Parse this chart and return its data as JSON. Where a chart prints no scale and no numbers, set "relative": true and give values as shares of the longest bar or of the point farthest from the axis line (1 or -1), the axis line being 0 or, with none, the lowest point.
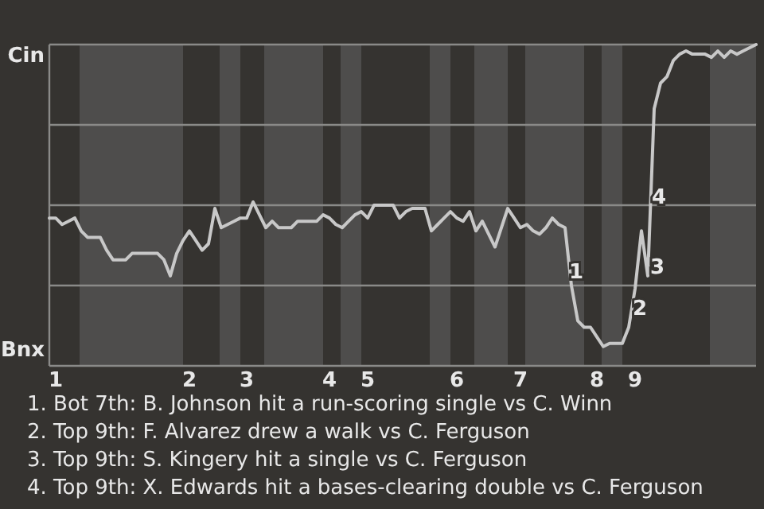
{
  "chart_data": {
    "type": "line",
    "relative": true,
    "categories": [
      null,
      "1",
      null,
      null,
      null,
      null,
      null,
      null,
      null,
      null,
      null,
      null,
      null,
      null,
      null,
      null,
      null,
      null,
      null,
      null,
      null,
      null,
      "2",
      null,
      null,
      null,
      null,
      null,
      null,
      null,
      null,
      "3",
      null,
      null,
      null,
      null,
      null,
      null,
      null,
      null,
      null,
      null,
      null,
      null,
      "4",
      null,
      null,
      null,
      null,
      null,
      "5",
      null,
      null,
      null,
      null,
      null,
      null,
      null,
      null,
      null,
      null,
      null,
      null,
      null,
      "6",
      null,
      null,
      null,
      null,
      null,
      null,
      null,
      null,
      null,
      "7",
      null,
      null,
      null,
      null,
      null,
      null,
      null,
      null,
      null,
      null,
      null,
      "8",
      null,
      null,
      null,
      null,
      null,
      "9",
      null,
      null,
      null,
      null,
      null,
      null,
      null,
      null,
      null,
      null,
      null,
      null,
      null,
      null,
      null,
      null,
      null,
      null,
      null
    ],
    "grid": "y",
    "marker": "none",
    "line_style": "solid",
    "series": [
      {
        "color": "#c8c8c8",
        "values": [
          0.46,
          0.46,
          0.44,
          0.45,
          0.46,
          0.42,
          0.4,
          0.4,
          0.4,
          0.36,
          0.33,
          0.33,
          0.33,
          0.35,
          0.35,
          0.35,
          0.35,
          0.35,
          0.33,
          0.28,
          0.35,
          0.39,
          0.42,
          0.39,
          0.36,
          0.38,
          0.49,
          0.43,
          0.44,
          0.45,
          0.46,
          0.46,
          0.51,
          0.47,
          0.43,
          0.45,
          0.43,
          0.43,
          0.43,
          0.45,
          0.45,
          0.45,
          0.45,
          0.47,
          0.46,
          0.44,
          0.43,
          0.45,
          0.47,
          0.48,
          0.46,
          0.5,
          0.5,
          0.5,
          0.5,
          0.46,
          0.48,
          0.49,
          0.49,
          0.49,
          0.42,
          0.44,
          0.46,
          0.48,
          0.46,
          0.45,
          0.48,
          0.42,
          0.45,
          0.41,
          0.37,
          0.43,
          0.49,
          0.46,
          0.43,
          0.44,
          0.42,
          0.41,
          0.43,
          0.46,
          0.44,
          0.43,
          0.25,
          0.14,
          0.12,
          0.12,
          0.09,
          0.06,
          0.07,
          0.07,
          0.07,
          0.12,
          0.24,
          0.42,
          0.28,
          0.8,
          0.88,
          0.9,
          0.95,
          0.97,
          0.98,
          0.97,
          0.97,
          0.97,
          0.96,
          0.98,
          0.96,
          0.98,
          0.97,
          0.98,
          0.99,
          1.0
        ]
      }
    ],
    "annotations": [
      "Cin",
      "Bnx",
      "1",
      "2",
      "3",
      "4",
      "1. Bot 7th: B. Johnson hit a run-scoring single vs C. Winn",
      "2. Top 9th: F. Alvarez drew a walk vs C. Ferguson",
      "3. Top 9th: S. Kingery hit a single vs C. Ferguson",
      "4. Top 9th: X. Edwards hit a bases-clearing double vs C. Ferguson"
    ]
  }
}
